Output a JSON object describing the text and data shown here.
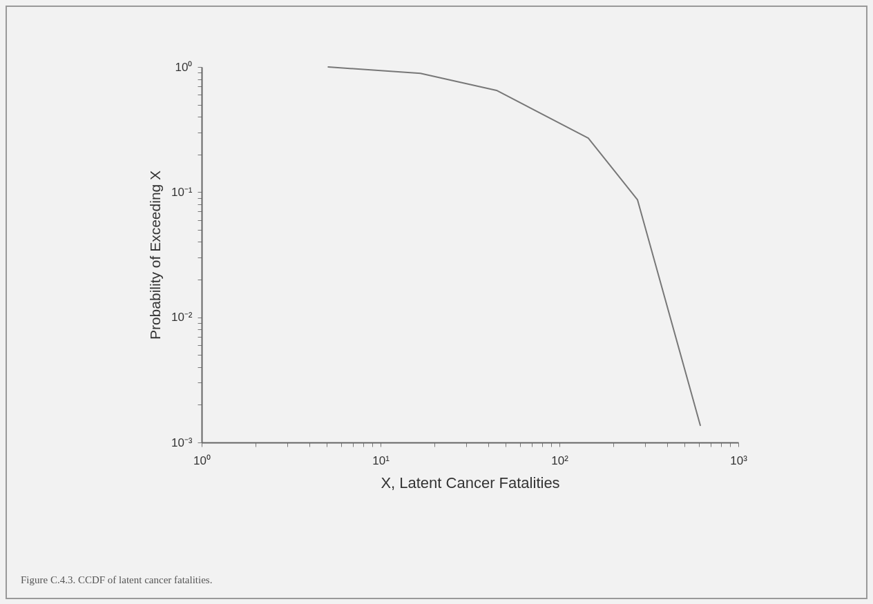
{
  "chart_data": {
    "type": "line",
    "xlabel": "X, Latent Cancer Fatalities",
    "ylabel": "Probability of Exceeding X",
    "annotations": [
      "Figure C.4.3. CCDF of latent cancer fatalities."
    ],
    "log": "xy",
    "grid": false,
    "marker": "none",
    "line_style": "solid",
    "x": [
      5.1,
      16.7,
      44.5,
      145,
      273,
      613
    ],
    "series": [
      {
        "color": "#777777",
        "values": [
          1.0,
          0.89,
          0.65,
          0.27,
          0.087,
          0.00137
        ]
      }
    ],
    "xlim": [
      1,
      1000
    ],
    "xticks": [
      {
        "value": 1,
        "label": "10⁰"
      },
      {
        "value": 2,
        "label": null
      },
      {
        "value": 3,
        "label": null
      },
      {
        "value": 4,
        "label": null
      },
      {
        "value": 5,
        "label": null
      },
      {
        "value": 6,
        "label": null
      },
      {
        "value": 7,
        "label": null
      },
      {
        "value": 8,
        "label": null
      },
      {
        "value": 9,
        "label": null
      },
      {
        "value": 10,
        "label": "10¹"
      },
      {
        "value": 20,
        "label": null
      },
      {
        "value": 30,
        "label": null
      },
      {
        "value": 40,
        "label": null
      },
      {
        "value": 50,
        "label": null
      },
      {
        "value": 60,
        "label": null
      },
      {
        "value": 70,
        "label": null
      },
      {
        "value": 80,
        "label": null
      },
      {
        "value": 90,
        "label": null
      },
      {
        "value": 100,
        "label": "10²"
      },
      {
        "value": 200,
        "label": null
      },
      {
        "value": 300,
        "label": null
      },
      {
        "value": 400,
        "label": null
      },
      {
        "value": 500,
        "label": null
      },
      {
        "value": 600,
        "label": null
      },
      {
        "value": 700,
        "label": null
      },
      {
        "value": 800,
        "label": null
      },
      {
        "value": 900,
        "label": null
      },
      {
        "value": 1000,
        "label": "10³"
      }
    ],
    "ylim": [
      0.001,
      1
    ],
    "yticks": [
      {
        "value": 0.001,
        "label": "10⁻³"
      },
      {
        "value": 0.002,
        "label": null
      },
      {
        "value": 0.003,
        "label": null
      },
      {
        "value": 0.004,
        "label": null
      },
      {
        "value": 0.005,
        "label": null
      },
      {
        "value": 0.006,
        "label": null
      },
      {
        "value": 0.007,
        "label": null
      },
      {
        "value": 0.008,
        "label": null
      },
      {
        "value": 0.009,
        "label": null
      },
      {
        "value": 0.01,
        "label": "10⁻²"
      },
      {
        "value": 0.02,
        "label": null
      },
      {
        "value": 0.03,
        "label": null
      },
      {
        "value": 0.04,
        "label": null
      },
      {
        "value": 0.05,
        "label": null
      },
      {
        "value": 0.06,
        "label": null
      },
      {
        "value": 0.07,
        "label": null
      },
      {
        "value": 0.08,
        "label": null
      },
      {
        "value": 0.09,
        "label": null
      },
      {
        "value": 0.1,
        "label": "10⁻¹"
      },
      {
        "value": 0.2,
        "label": null
      },
      {
        "value": 0.3,
        "label": null
      },
      {
        "value": 0.4,
        "label": null
      },
      {
        "value": 0.5,
        "label": null
      },
      {
        "value": 0.6,
        "label": null
      },
      {
        "value": 0.7,
        "label": null
      },
      {
        "value": 0.8,
        "label": null
      },
      {
        "value": 0.9,
        "label": null
      },
      {
        "value": 1,
        "label": "10⁰"
      }
    ]
  }
}
